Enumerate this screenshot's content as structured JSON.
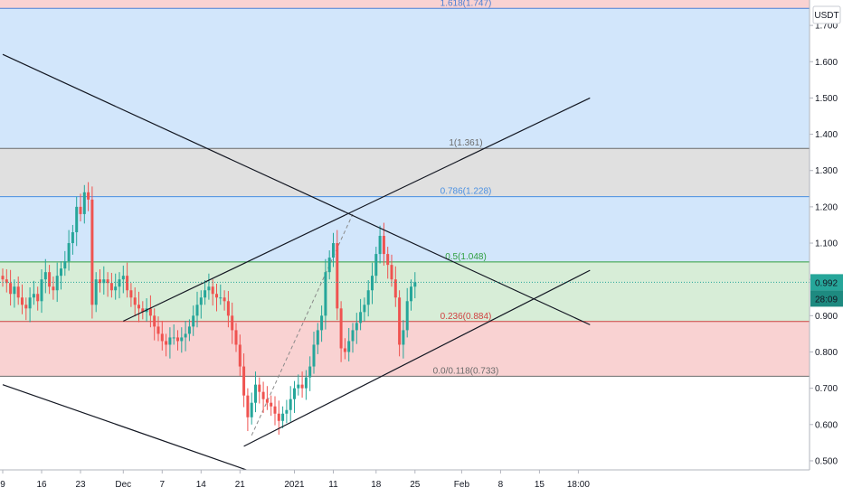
{
  "chart_data": {
    "type": "candlestick",
    "title": "",
    "currency_label": "USDT",
    "xlabel": "",
    "ylabel": "",
    "ylim": [
      0.475,
      1.75
    ],
    "y_ticks": [
      "1.700",
      "1.600",
      "1.500",
      "1.400",
      "1.300",
      "1.200",
      "1.100",
      "1.000",
      "0.900",
      "0.800",
      "0.700",
      "0.600",
      "0.500"
    ],
    "x_ticks": [
      "9",
      "16",
      "23",
      "Dec",
      "7",
      "14",
      "21",
      "2021",
      "11",
      "18",
      "25",
      "Feb",
      "8",
      "15",
      "18:00"
    ],
    "x_tick_index": [
      0,
      10,
      20,
      31,
      41,
      51,
      61,
      75,
      85,
      96,
      106,
      118,
      128,
      138,
      148
    ],
    "grid": false,
    "current_price": "0.992",
    "countdown": "28:09",
    "fib_levels": [
      {
        "label": "1.618(1.747)",
        "value": 1.747,
        "color": "#4a7fd4"
      },
      {
        "label": "1(1.361)",
        "value": 1.361,
        "color": "#6b6b6b"
      },
      {
        "label": "0.786(1.228)",
        "value": 1.228,
        "color": "#4a90e2"
      },
      {
        "label": "0.5(1.048)",
        "value": 1.048,
        "color": "#2e9e3e"
      },
      {
        "label": "0.236(0.884)",
        "value": 0.884,
        "color": "#d04040"
      },
      {
        "label": "0.0/0.118(0.733)",
        "value": 0.733,
        "color": "#6b6b6b"
      }
    ],
    "zones": [
      {
        "from": 1.747,
        "to": 1.77,
        "color": "#f9d2d2"
      },
      {
        "from": 1.361,
        "to": 1.747,
        "color": "#d2e6fb"
      },
      {
        "from": 1.228,
        "to": 1.361,
        "color": "#e0e0e0"
      },
      {
        "from": 1.048,
        "to": 1.228,
        "color": "#d2e6fb"
      },
      {
        "from": 0.884,
        "to": 1.048,
        "color": "#d7edd7"
      },
      {
        "from": 0.733,
        "to": 0.884,
        "color": "#f9d2d2"
      }
    ],
    "trendlines": [
      {
        "p1": {
          "i": 0,
          "v": 1.62
        },
        "p2": {
          "i": 151,
          "v": 0.875
        },
        "color": "#131722"
      },
      {
        "p1": {
          "i": 0,
          "v": 0.71
        },
        "p2": {
          "i": 64,
          "v": 0.47
        },
        "color": "#131722"
      },
      {
        "p1": {
          "i": 31,
          "v": 0.885
        },
        "p2": {
          "i": 151,
          "v": 1.5
        },
        "color": "#131722"
      },
      {
        "p1": {
          "i": 62,
          "v": 0.54
        },
        "p2": {
          "i": 151,
          "v": 1.025
        },
        "color": "#131722"
      }
    ],
    "fib_anchor_line": {
      "p1": {
        "i": 64,
        "v": 0.57
      },
      "p2": {
        "i": 90,
        "v": 1.18
      }
    },
    "close_values": [
      1.0,
      0.99,
      0.96,
      0.98,
      0.95,
      0.93,
      0.92,
      0.95,
      0.96,
      0.94,
      1.0,
      1.02,
      0.98,
      0.97,
      1.01,
      1.03,
      1.05,
      1.1,
      1.13,
      1.2,
      1.18,
      1.24,
      1.22,
      0.93,
      1.0,
      0.99,
      1.0,
      0.99,
      0.97,
      0.98,
      1.0,
      1.01,
      0.97,
      0.95,
      0.93,
      0.92,
      0.91,
      0.92,
      0.9,
      0.87,
      0.85,
      0.83,
      0.82,
      0.84,
      0.84,
      0.83,
      0.84,
      0.85,
      0.87,
      0.9,
      0.93,
      0.95,
      0.97,
      0.98,
      0.96,
      0.95,
      0.95,
      0.94,
      0.9,
      0.86,
      0.82,
      0.76,
      0.68,
      0.62,
      0.66,
      0.71,
      0.69,
      0.67,
      0.66,
      0.65,
      0.63,
      0.61,
      0.63,
      0.64,
      0.67,
      0.7,
      0.71,
      0.7,
      0.73,
      0.76,
      0.82,
      0.86,
      0.9,
      1.02,
      1.06,
      1.1,
      0.92,
      0.81,
      0.8,
      0.83,
      0.86,
      0.88,
      0.91,
      0.93,
      0.97,
      1.01,
      1.07,
      1.12,
      1.07,
      1.04,
      1.0,
      0.95,
      0.82,
      0.86,
      0.94,
      0.98,
      0.992
    ]
  }
}
